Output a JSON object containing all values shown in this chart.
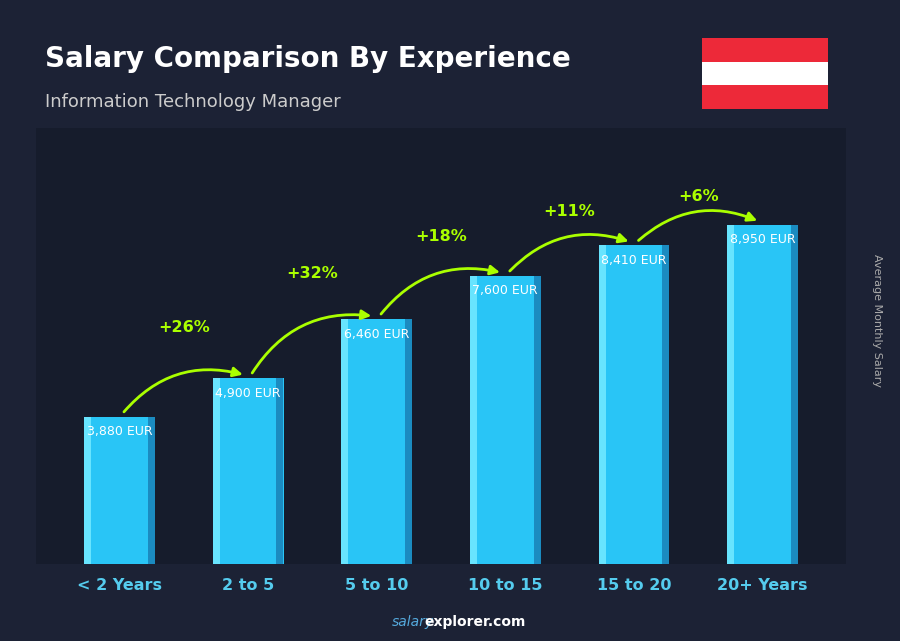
{
  "title": "Salary Comparison By Experience",
  "subtitle": "Information Technology Manager",
  "categories": [
    "< 2 Years",
    "2 to 5",
    "5 to 10",
    "10 to 15",
    "15 to 20",
    "20+ Years"
  ],
  "values": [
    3880,
    4900,
    6460,
    7600,
    8410,
    8950
  ],
  "value_labels": [
    "3,880 EUR",
    "4,900 EUR",
    "6,460 EUR",
    "7,600 EUR",
    "8,410 EUR",
    "8,950 EUR"
  ],
  "pct_changes": [
    "+26%",
    "+32%",
    "+18%",
    "+11%",
    "+6%"
  ],
  "pct_color": "#aaff00",
  "bar_main_color": "#29c5f6",
  "bar_left_highlight": "#70e8ff",
  "bar_right_shadow": "#1a85bb",
  "bg_color": "#1c2235",
  "title_color": "#ffffff",
  "subtitle_color": "#cccccc",
  "value_color": "#ffffff",
  "xlabel_color": "#55ccee",
  "ylabel_text": "Average Monthly Salary",
  "ylim": [
    0,
    11500
  ],
  "bar_width": 0.55,
  "flag_red": "#ED2939",
  "flag_white": "#FFFFFF"
}
